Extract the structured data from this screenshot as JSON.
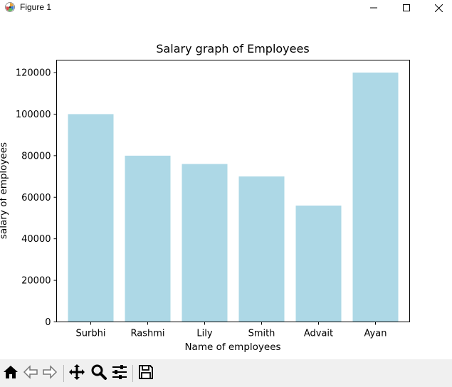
{
  "window": {
    "title": "Figure 1",
    "icon": "matplotlib-icon",
    "controls": [
      {
        "name": "minimize-button",
        "icon": "minimize-icon"
      },
      {
        "name": "maximize-button",
        "icon": "maximize-icon"
      },
      {
        "name": "close-button",
        "icon": "close-icon"
      }
    ]
  },
  "chart_data": {
    "type": "bar",
    "title": "Salary graph of Employees",
    "xlabel": "Name of employees",
    "ylabel": "salary of employees",
    "categories": [
      "Surbhi",
      "Rashmi",
      "Lily",
      "Smith",
      "Advait",
      "Ayan"
    ],
    "values": [
      100000,
      80000,
      76000,
      70000,
      56000,
      120000
    ],
    "ylim": [
      0,
      126000
    ],
    "yticks": [
      0,
      20000,
      40000,
      60000,
      80000,
      100000,
      120000
    ],
    "ytick_labels": [
      "0",
      "20000",
      "40000",
      "60000",
      "80000",
      "100000",
      "120000"
    ],
    "bar_color": "#add8e6",
    "grid": false,
    "legend": null
  },
  "toolbar": {
    "buttons": [
      {
        "name": "home-button",
        "icon": "home-icon",
        "tooltip": "Reset original view"
      },
      {
        "name": "back-button",
        "icon": "back-arrow-icon",
        "tooltip": "Back to previous view"
      },
      {
        "name": "forward-button",
        "icon": "forward-arrow-icon",
        "tooltip": "Forward to next view"
      },
      {
        "name": "pan-button",
        "icon": "move-icon",
        "tooltip": "Pan axes"
      },
      {
        "name": "zoom-button",
        "icon": "magnifier-icon",
        "tooltip": "Zoom to rectangle"
      },
      {
        "name": "configure-button",
        "icon": "sliders-icon",
        "tooltip": "Configure subplots"
      },
      {
        "name": "save-button",
        "icon": "floppy-disk-icon",
        "tooltip": "Save the figure"
      }
    ]
  }
}
